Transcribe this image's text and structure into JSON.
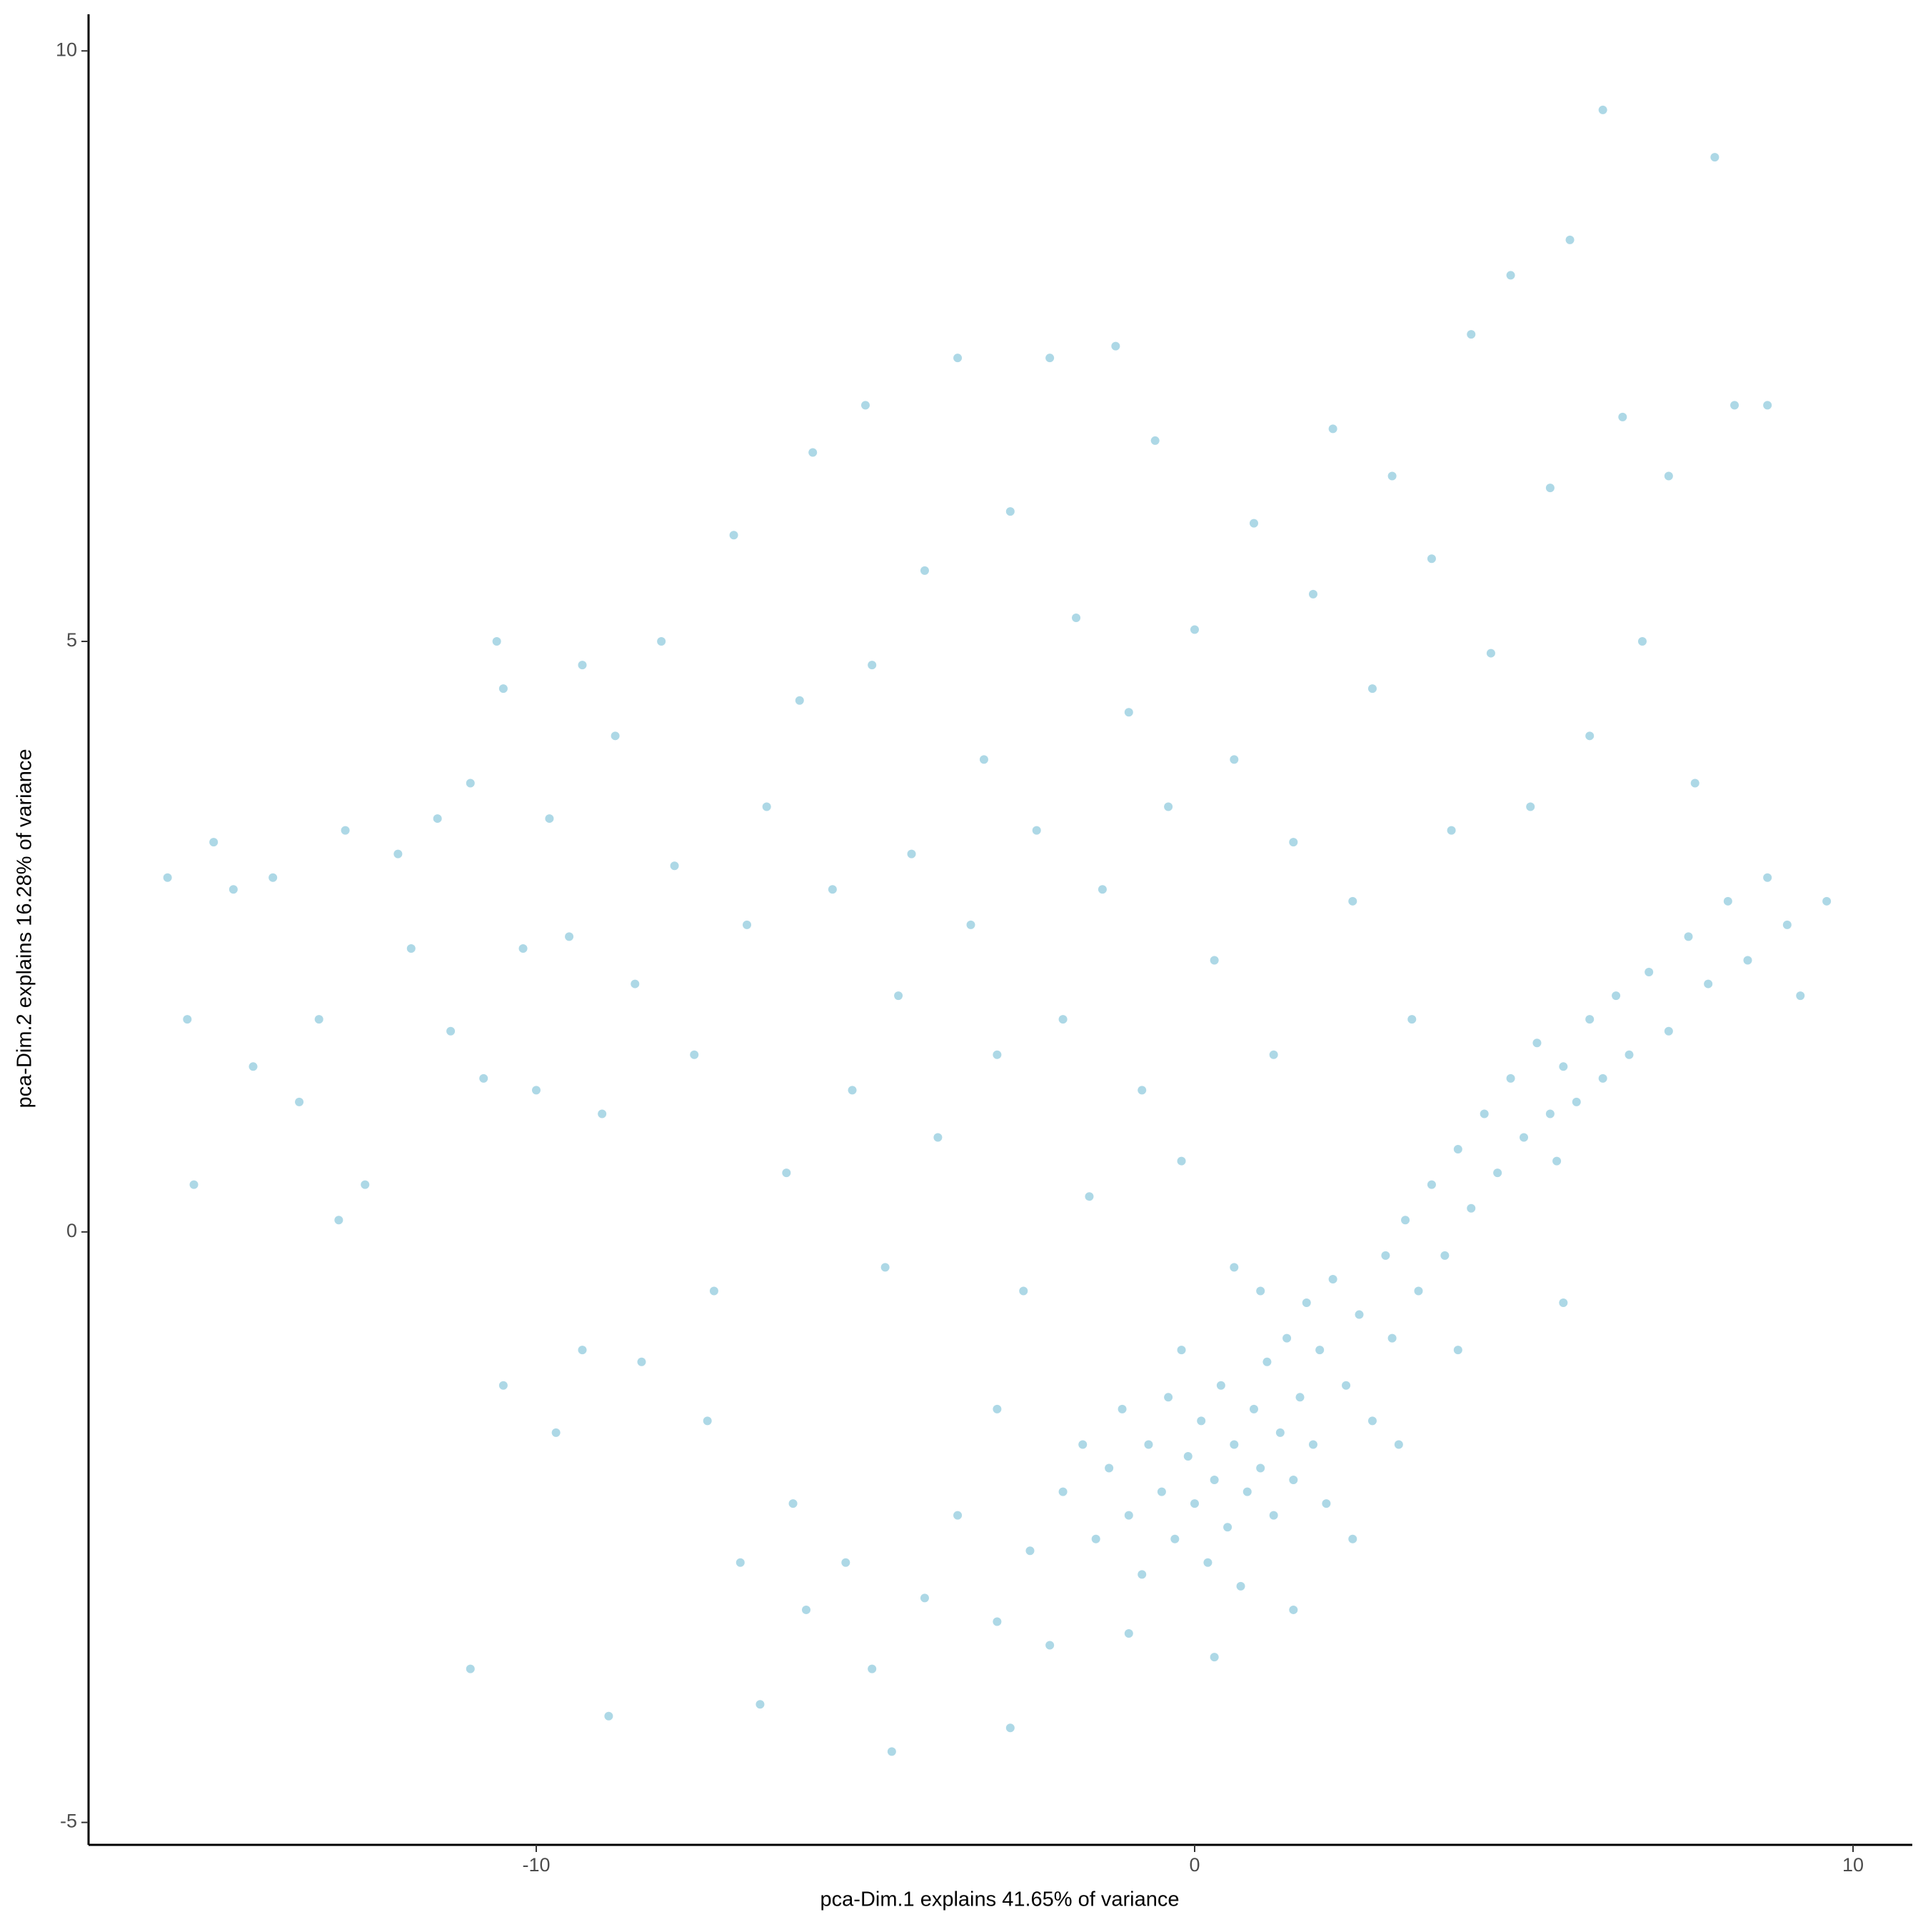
{
  "chart_data": {
    "type": "scatter",
    "x_label": "pca-Dim.1 explains 41.65% of variance",
    "y_label": "pca-Dim.2 explains 16.28% of variance",
    "color": "#add8e6",
    "xlim": [
      -16.8,
      10.9
    ],
    "xticks": [
      -10,
      0,
      10
    ],
    "ylim": [
      -5.19,
      10.31
    ],
    "yticks": [
      -5,
      0,
      5,
      10
    ],
    "grid": false,
    "x": [
      -15.6,
      -15.3,
      -15.2,
      -14.9,
      -14.6,
      -14.3,
      -14.0,
      -13.6,
      -13.3,
      -13.0,
      -12.9,
      -12.6,
      -12.1,
      -11.9,
      -11.5,
      -11.3,
      -11.0,
      -10.8,
      -10.6,
      -10.5,
      -10.2,
      -10.0,
      -9.8,
      -9.5,
      -9.3,
      -9.0,
      -8.8,
      -8.5,
      -8.1,
      -7.9,
      -7.6,
      -7.3,
      -7.0,
      -6.8,
      -6.5,
      -6.2,
      -6.0,
      -5.8,
      -5.5,
      -5.2,
      -5.0,
      -4.9,
      -4.7,
      -4.5,
      -4.3,
      -4.1,
      -3.9,
      -3.6,
      -3.4,
      -3.2,
      -3.0,
      -2.8,
      -2.6,
      -2.4,
      -2.2,
      -2.0,
      -1.8,
      -1.6,
      -1.4,
      -1.2,
      -1.0,
      -0.8,
      -0.6,
      -0.4,
      -0.2,
      0.0,
      0.3,
      0.6,
      0.9,
      1.2,
      1.5,
      1.8,
      2.1,
      2.4,
      2.7,
      3.0,
      3.3,
      3.6,
      3.9,
      4.2,
      4.5,
      4.8,
      5.1,
      5.4,
      5.7,
      6.0,
      6.2,
      6.5,
      6.8,
      7.2,
      7.6,
      7.9,
      8.2,
      8.7,
      -11.0,
      -10.5,
      -9.7,
      -9.3,
      -8.9,
      -8.4,
      -7.4,
      -6.9,
      -6.6,
      -6.1,
      -5.9,
      -5.3,
      -4.9,
      -4.6,
      -4.1,
      -3.6,
      -3.0,
      -2.8,
      -2.0,
      -1.7,
      -1.5,
      -1.3,
      -1.1,
      -1.0,
      -0.8,
      -0.7,
      -0.5,
      -0.4,
      -0.3,
      -0.1,
      0.0,
      0.1,
      0.2,
      0.3,
      0.4,
      0.5,
      0.6,
      0.7,
      0.8,
      0.9,
      1.0,
      1.1,
      1.2,
      1.3,
      1.4,
      1.5,
      1.6,
      1.7,
      1.8,
      1.9,
      2.0,
      2.1,
      2.3,
      2.5,
      2.7,
      2.9,
      3.0,
      3.2,
      3.4,
      3.6,
      3.8,
      4.0,
      4.2,
      4.4,
      4.6,
      4.8,
      5.0,
      5.2,
      5.4,
      5.5,
      5.6,
      5.8,
      6.0,
      6.2,
      6.4,
      6.6,
      6.9,
      7.2,
      7.5,
      7.8,
      8.1,
      8.4,
      8.7,
      9.0,
      9.2,
      9.6,
      -1.0,
      0.3,
      -2.2,
      2.4,
      1.5,
      -0.2,
      1.0,
      -3.0,
      -2.5,
      0.6,
      4.0,
      5.6,
      3.1
    ],
    "values": [
      3.0,
      1.8,
      0.4,
      3.3,
      2.9,
      1.4,
      3.0,
      1.1,
      1.8,
      0.1,
      3.4,
      0.4,
      3.2,
      2.4,
      3.5,
      1.7,
      3.8,
      1.3,
      5.0,
      4.6,
      2.4,
      1.2,
      3.5,
      2.5,
      4.8,
      1.0,
      4.2,
      2.1,
      5.0,
      3.1,
      1.5,
      -0.5,
      5.9,
      2.6,
      3.6,
      0.5,
      4.5,
      6.6,
      2.9,
      1.2,
      7.0,
      4.8,
      -0.3,
      2.0,
      3.2,
      5.6,
      0.8,
      7.4,
      2.6,
      4.0,
      1.5,
      6.1,
      -0.5,
      3.4,
      7.4,
      1.8,
      5.2,
      0.3,
      2.9,
      7.5,
      4.4,
      1.2,
      6.7,
      3.6,
      0.6,
      5.1,
      2.3,
      4.0,
      6.0,
      1.5,
      3.3,
      5.4,
      6.8,
      2.8,
      4.6,
      6.4,
      1.8,
      5.7,
      3.4,
      7.6,
      4.9,
      8.1,
      3.6,
      6.3,
      8.4,
      4.2,
      9.5,
      6.9,
      5.0,
      6.4,
      3.8,
      9.1,
      7.0,
      7.0,
      -3.7,
      -1.3,
      -1.7,
      -1.0,
      -4.1,
      -1.1,
      -1.6,
      -2.8,
      -4.0,
      -2.3,
      -3.2,
      -2.8,
      -3.7,
      -4.4,
      -3.1,
      -2.4,
      -3.3,
      -4.2,
      -2.2,
      -1.8,
      -2.6,
      -2.0,
      -1.5,
      -2.4,
      -2.9,
      -1.8,
      -2.2,
      -1.4,
      -2.6,
      -1.9,
      -2.3,
      -1.6,
      -2.8,
      -2.1,
      -1.3,
      -2.5,
      -1.8,
      -3.0,
      -2.2,
      -1.5,
      -2.0,
      -1.1,
      -2.4,
      -1.7,
      -0.9,
      -2.1,
      -1.4,
      -0.6,
      -1.8,
      -1.0,
      -2.3,
      -0.4,
      -1.3,
      -0.7,
      -1.6,
      -0.2,
      -0.9,
      0.1,
      -0.5,
      0.4,
      -0.2,
      0.7,
      0.2,
      1.0,
      0.5,
      1.3,
      0.8,
      1.6,
      1.0,
      0.6,
      1.4,
      1.1,
      1.8,
      1.3,
      2.0,
      1.5,
      2.2,
      1.7,
      2.5,
      2.1,
      2.8,
      2.3,
      3.0,
      2.6,
      2.0,
      2.8,
      -3.4,
      -3.6,
      -3.5,
      -2.6,
      -3.2,
      -1.0,
      -0.5,
      -1.5,
      -2.7,
      -0.3,
      -1.0,
      -0.6,
      -1.8
    ]
  }
}
